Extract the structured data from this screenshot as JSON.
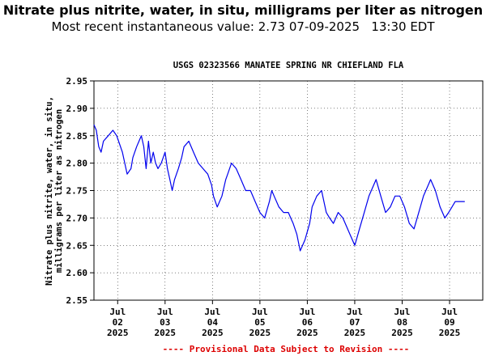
{
  "header": {
    "title": "Nitrate plus nitrite, water, in situ, milligrams per liter as nitrogen",
    "subtitle": "Most recent instantaneous value: 2.73 07-09-2025   13:30 EDT"
  },
  "colors": {
    "series": "#0000ee",
    "footer": "#dd0000",
    "axis": "#000000",
    "grid": "#000000"
  },
  "chart_data": {
    "type": "line",
    "title": "USGS 02323566 MANATEE SPRING NR CHIEFLAND FLA",
    "ylabel_lines": [
      "Nitrate plus nitrite, water, in situ,",
      "milligrams per liter as nitrogen"
    ],
    "ylim": [
      2.55,
      2.95
    ],
    "yticks": [
      "2.95",
      "2.90",
      "2.85",
      "2.80",
      "2.75",
      "2.70",
      "2.65",
      "2.60",
      "2.55"
    ],
    "xlim_days": [
      0,
      8.2
    ],
    "xticks": [
      {
        "day": 0.5,
        "line1": "Jul",
        "line2": "02",
        "line3": "2025"
      },
      {
        "day": 1.5,
        "line1": "Jul",
        "line2": "03",
        "line3": "2025"
      },
      {
        "day": 2.5,
        "line1": "Jul",
        "line2": "04",
        "line3": "2025"
      },
      {
        "day": 3.5,
        "line1": "Jul",
        "line2": "05",
        "line3": "2025"
      },
      {
        "day": 4.5,
        "line1": "Jul",
        "line2": "06",
        "line3": "2025"
      },
      {
        "day": 5.5,
        "line1": "Jul",
        "line2": "07",
        "line3": "2025"
      },
      {
        "day": 6.5,
        "line1": "Jul",
        "line2": "08",
        "line3": "2025"
      },
      {
        "day": 7.5,
        "line1": "Jul",
        "line2": "09",
        "line3": "2025"
      }
    ],
    "grid": true,
    "series": [
      {
        "x_days": [
          0.0,
          0.05,
          0.1,
          0.15,
          0.2,
          0.3,
          0.4,
          0.48,
          0.52,
          0.6,
          0.7,
          0.78,
          0.82,
          0.9,
          0.95,
          1.0,
          1.05,
          1.1,
          1.15,
          1.2,
          1.25,
          1.3,
          1.35,
          1.42,
          1.5,
          1.55,
          1.6,
          1.65,
          1.7,
          1.78,
          1.85,
          1.9,
          2.0,
          2.1,
          2.2,
          2.3,
          2.4,
          2.48,
          2.52,
          2.6,
          2.7,
          2.78,
          2.82,
          2.9,
          3.0,
          3.1,
          3.2,
          3.3,
          3.4,
          3.5,
          3.6,
          3.7,
          3.75,
          3.8,
          3.9,
          4.0,
          4.1,
          4.15,
          4.2,
          4.28,
          4.35,
          4.45,
          4.55,
          4.6,
          4.7,
          4.8,
          4.85,
          4.9,
          4.97,
          5.05,
          5.15,
          5.25,
          5.4,
          5.5,
          5.6,
          5.7,
          5.8,
          5.95,
          6.05,
          6.15,
          6.25,
          6.35,
          6.45,
          6.55,
          6.65,
          6.75,
          6.85,
          6.95,
          7.05,
          7.1,
          7.2,
          7.3,
          7.4,
          7.48,
          7.55,
          7.62,
          7.7,
          7.75,
          7.82
        ],
        "values": [
          2.87,
          2.86,
          2.83,
          2.82,
          2.84,
          2.85,
          2.86,
          2.85,
          2.84,
          2.82,
          2.78,
          2.79,
          2.81,
          2.83,
          2.84,
          2.85,
          2.83,
          2.79,
          2.84,
          2.8,
          2.82,
          2.8,
          2.79,
          2.8,
          2.82,
          2.79,
          2.77,
          2.75,
          2.77,
          2.79,
          2.81,
          2.83,
          2.84,
          2.82,
          2.8,
          2.79,
          2.78,
          2.76,
          2.74,
          2.72,
          2.74,
          2.77,
          2.78,
          2.8,
          2.79,
          2.77,
          2.75,
          2.75,
          2.73,
          2.71,
          2.7,
          2.73,
          2.75,
          2.74,
          2.72,
          2.71,
          2.71,
          2.7,
          2.69,
          2.67,
          2.64,
          2.66,
          2.69,
          2.72,
          2.74,
          2.75,
          2.73,
          2.71,
          2.7,
          2.69,
          2.71,
          2.7,
          2.67,
          2.65,
          2.68,
          2.71,
          2.74,
          2.77,
          2.74,
          2.71,
          2.72,
          2.74,
          2.74,
          2.72,
          2.69,
          2.68,
          2.71,
          2.74,
          2.76,
          2.77,
          2.75,
          2.72,
          2.7,
          2.71,
          2.72,
          2.73,
          2.73,
          2.73,
          2.73
        ]
      }
    ]
  },
  "footer": {
    "text": "---- Provisional Data Subject to Revision ----"
  }
}
